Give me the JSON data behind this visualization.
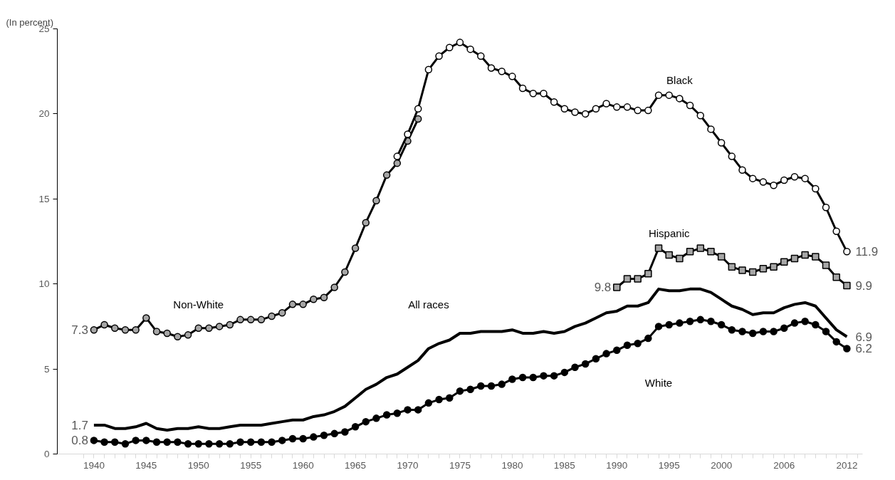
{
  "chart_data": {
    "type": "line",
    "ylabel": "(In percent)",
    "ylim": [
      0,
      25
    ],
    "yticks": [
      0,
      5,
      10,
      15,
      20,
      25
    ],
    "xlim": [
      1936.5,
      2013.5
    ],
    "xticks": [
      {
        "value": 1939,
        "label": null
      },
      1940,
      {
        "value": 1941,
        "label": null
      },
      {
        "value": 1942,
        "label": null
      },
      {
        "value": 1943,
        "label": null
      },
      {
        "value": 1944,
        "label": null
      },
      1945,
      {
        "value": 1946,
        "label": null
      },
      {
        "value": 1947,
        "label": null
      },
      {
        "value": 1948,
        "label": null
      },
      {
        "value": 1949,
        "label": null
      },
      1950,
      {
        "value": 1951,
        "label": null
      },
      {
        "value": 1952,
        "label": null
      },
      {
        "value": 1953,
        "label": null
      },
      {
        "value": 1954,
        "label": null
      },
      1955,
      {
        "value": 1956,
        "label": null
      },
      {
        "value": 1957,
        "label": null
      },
      {
        "value": 1958,
        "label": null
      },
      {
        "value": 1959,
        "label": null
      },
      1960,
      {
        "value": 1961,
        "label": null
      },
      {
        "value": 1962,
        "label": null
      },
      {
        "value": 1963,
        "label": null
      },
      {
        "value": 1964,
        "label": null
      },
      1965,
      {
        "value": 1966,
        "label": null
      },
      {
        "value": 1967,
        "label": null
      },
      {
        "value": 1968,
        "label": null
      },
      {
        "value": 1969,
        "label": null
      },
      1970,
      {
        "value": 1971,
        "label": null
      },
      {
        "value": 1972,
        "label": null
      },
      {
        "value": 1973,
        "label": null
      },
      {
        "value": 1974,
        "label": null
      },
      1975,
      {
        "value": 1976,
        "label": null
      },
      {
        "value": 1977,
        "label": null
      },
      {
        "value": 1978,
        "label": null
      },
      {
        "value": 1979,
        "label": null
      },
      1980,
      {
        "value": 1981,
        "label": null
      },
      {
        "value": 1982,
        "label": null
      },
      {
        "value": 1983,
        "label": null
      },
      {
        "value": 1984,
        "label": null
      },
      1985,
      {
        "value": 1986,
        "label": null
      },
      {
        "value": 1987,
        "label": null
      },
      {
        "value": 1988,
        "label": null
      },
      {
        "value": 1989,
        "label": null
      },
      1990,
      {
        "value": 1991,
        "label": null
      },
      {
        "value": 1992,
        "label": null
      },
      {
        "value": 1993,
        "label": null
      },
      {
        "value": 1994,
        "label": null
      },
      1995,
      {
        "value": 1996,
        "label": null
      },
      {
        "value": 1997,
        "label": null
      },
      {
        "value": 1998,
        "label": null
      },
      {
        "value": 1999,
        "label": null
      },
      2000,
      {
        "value": 2001,
        "label": null
      },
      {
        "value": 2002,
        "label": null
      },
      {
        "value": 2003,
        "label": null
      },
      {
        "value": 2004,
        "label": null
      },
      {
        "value": 2005,
        "label": null
      },
      2006,
      {
        "value": 2007,
        "label": null
      },
      {
        "value": 2008,
        "label": null
      },
      {
        "value": 2009,
        "label": null
      },
      {
        "value": 2010,
        "label": null
      },
      {
        "value": 2011,
        "label": null
      },
      2012,
      {
        "value": 2013,
        "label": null
      }
    ],
    "grid": false,
    "line_style": "solid",
    "series": [
      {
        "name": "Non-White",
        "color": "#a6a6a6",
        "marker": "circle",
        "x": [
          1940,
          1941,
          1942,
          1943,
          1944,
          1945,
          1946,
          1947,
          1948,
          1949,
          1950,
          1951,
          1952,
          1953,
          1954,
          1955,
          1956,
          1957,
          1958,
          1959,
          1960,
          1961,
          1962,
          1963,
          1964,
          1965,
          1966,
          1967,
          1968,
          1969,
          1970,
          1971
        ],
        "values": [
          7.3,
          7.6,
          7.4,
          7.3,
          7.3,
          8.0,
          7.2,
          7.1,
          6.9,
          7.0,
          7.4,
          7.4,
          7.5,
          7.6,
          7.9,
          7.9,
          7.9,
          8.1,
          8.3,
          8.8,
          8.8,
          9.1,
          9.2,
          9.8,
          10.7,
          12.1,
          13.6,
          14.9,
          16.4,
          17.1,
          18.4,
          19.7
        ],
        "value_labels": [
          "7.3",
          null,
          null,
          null,
          null,
          null,
          null,
          null,
          null,
          null,
          null,
          null,
          null,
          null,
          null,
          null,
          null,
          null,
          null,
          null,
          null,
          null,
          null,
          null,
          null,
          null,
          null,
          null,
          null,
          null,
          null,
          null
        ]
      },
      {
        "name": "Black",
        "color": "#ffffff",
        "marker": "circle",
        "x": [
          1969,
          1970,
          1971,
          1972,
          1973,
          1974,
          1975,
          1976,
          1977,
          1978,
          1979,
          1980,
          1981,
          1982,
          1983,
          1984,
          1985,
          1986,
          1987,
          1988,
          1989,
          1990,
          1991,
          1992,
          1993,
          1994,
          1995,
          1996,
          1997,
          1998,
          1999,
          2000,
          2001,
          2002,
          2003,
          2004,
          2005,
          2006,
          2007,
          2008,
          2009,
          2010,
          2011,
          2012
        ],
        "values": [
          17.5,
          18.8,
          20.3,
          22.6,
          23.4,
          23.9,
          24.2,
          23.8,
          23.4,
          22.7,
          22.5,
          22.2,
          21.5,
          21.2,
          21.2,
          20.7,
          20.3,
          20.1,
          20.0,
          20.3,
          20.6,
          20.4,
          20.4,
          20.2,
          20.2,
          21.1,
          21.1,
          20.9,
          20.5,
          19.9,
          19.1,
          18.3,
          17.5,
          16.7,
          16.2,
          16.0,
          15.8,
          16.1,
          16.3,
          16.2,
          15.6,
          14.5,
          13.1,
          11.9
        ],
        "value_labels": [
          null,
          null,
          null,
          null,
          null,
          null,
          null,
          null,
          null,
          null,
          null,
          null,
          null,
          null,
          null,
          null,
          null,
          null,
          null,
          null,
          null,
          null,
          null,
          null,
          null,
          null,
          null,
          null,
          null,
          null,
          null,
          null,
          null,
          null,
          null,
          null,
          null,
          null,
          null,
          null,
          null,
          null,
          null,
          "11.9"
        ]
      },
      {
        "name": "Hispanic",
        "color": "#a6a6a6",
        "marker": "square",
        "x": [
          1990,
          1991,
          1992,
          1993,
          1994,
          1995,
          1996,
          1997,
          1998,
          1999,
          2000,
          2001,
          2002,
          2003,
          2004,
          2005,
          2006,
          2007,
          2008,
          2009,
          2010,
          2011,
          2012
        ],
        "values": [
          9.8,
          10.3,
          10.3,
          10.6,
          12.1,
          11.7,
          11.5,
          11.9,
          12.1,
          11.9,
          11.6,
          11.0,
          10.8,
          10.7,
          10.9,
          11.0,
          11.3,
          11.5,
          11.7,
          11.6,
          11.1,
          10.4,
          9.9
        ],
        "value_labels": [
          "9.8",
          null,
          null,
          null,
          null,
          null,
          null,
          null,
          null,
          null,
          null,
          null,
          null,
          null,
          null,
          null,
          null,
          null,
          null,
          null,
          null,
          null,
          "9.9"
        ]
      },
      {
        "name": "All races",
        "color": "#000000",
        "marker": "none",
        "x": [
          1940,
          1941,
          1942,
          1943,
          1944,
          1945,
          1946,
          1947,
          1948,
          1949,
          1950,
          1951,
          1952,
          1953,
          1954,
          1955,
          1956,
          1957,
          1958,
          1959,
          1960,
          1961,
          1962,
          1963,
          1964,
          1965,
          1966,
          1967,
          1968,
          1969,
          1970,
          1971,
          1972,
          1973,
          1974,
          1975,
          1976,
          1977,
          1978,
          1979,
          1980,
          1981,
          1982,
          1983,
          1984,
          1985,
          1986,
          1987,
          1988,
          1989,
          1990,
          1991,
          1992,
          1993,
          1994,
          1995,
          1996,
          1997,
          1998,
          1999,
          2000,
          2001,
          2002,
          2003,
          2004,
          2005,
          2006,
          2007,
          2008,
          2009,
          2010,
          2011,
          2012
        ],
        "values": [
          1.7,
          1.7,
          1.5,
          1.5,
          1.6,
          1.8,
          1.5,
          1.4,
          1.5,
          1.5,
          1.6,
          1.5,
          1.5,
          1.6,
          1.7,
          1.7,
          1.7,
          1.8,
          1.9,
          2.0,
          2.0,
          2.2,
          2.3,
          2.5,
          2.8,
          3.3,
          3.8,
          4.1,
          4.5,
          4.7,
          5.1,
          5.5,
          6.2,
          6.5,
          6.7,
          7.1,
          7.1,
          7.2,
          7.2,
          7.2,
          7.3,
          7.1,
          7.1,
          7.2,
          7.1,
          7.2,
          7.5,
          7.7,
          8.0,
          8.3,
          8.4,
          8.7,
          8.7,
          8.9,
          9.7,
          9.6,
          9.6,
          9.7,
          9.7,
          9.5,
          9.1,
          8.7,
          8.5,
          8.2,
          8.3,
          8.3,
          8.6,
          8.8,
          8.9,
          8.7,
          8.0,
          7.3,
          6.9
        ],
        "value_labels": [
          "1.7",
          null,
          null,
          null,
          null,
          null,
          null,
          null,
          null,
          null,
          null,
          null,
          null,
          null,
          null,
          null,
          null,
          null,
          null,
          null,
          null,
          null,
          null,
          null,
          null,
          null,
          null,
          null,
          null,
          null,
          null,
          null,
          null,
          null,
          null,
          null,
          null,
          null,
          null,
          null,
          null,
          null,
          null,
          null,
          null,
          null,
          null,
          null,
          null,
          null,
          null,
          null,
          null,
          null,
          null,
          null,
          null,
          null,
          null,
          null,
          null,
          null,
          null,
          null,
          null,
          null,
          null,
          null,
          null,
          null,
          null,
          null,
          "6.9"
        ]
      },
      {
        "name": "White",
        "color": "#000000",
        "marker": "circle",
        "x": [
          1940,
          1941,
          1942,
          1943,
          1944,
          1945,
          1946,
          1947,
          1948,
          1949,
          1950,
          1951,
          1952,
          1953,
          1954,
          1955,
          1956,
          1957,
          1958,
          1959,
          1960,
          1961,
          1962,
          1963,
          1964,
          1965,
          1966,
          1967,
          1968,
          1969,
          1970,
          1971,
          1972,
          1973,
          1974,
          1975,
          1976,
          1977,
          1978,
          1979,
          1980,
          1981,
          1982,
          1983,
          1984,
          1985,
          1986,
          1987,
          1988,
          1989,
          1990,
          1991,
          1992,
          1993,
          1994,
          1995,
          1996,
          1997,
          1998,
          1999,
          2000,
          2001,
          2002,
          2003,
          2004,
          2005,
          2006,
          2007,
          2008,
          2009,
          2010,
          2011,
          2012
        ],
        "values": [
          0.8,
          0.7,
          0.7,
          0.6,
          0.8,
          0.8,
          0.7,
          0.7,
          0.7,
          0.6,
          0.6,
          0.6,
          0.6,
          0.6,
          0.7,
          0.7,
          0.7,
          0.7,
          0.8,
          0.9,
          0.9,
          1.0,
          1.1,
          1.2,
          1.3,
          1.6,
          1.9,
          2.1,
          2.3,
          2.4,
          2.6,
          2.6,
          3.0,
          3.2,
          3.3,
          3.7,
          3.8,
          4.0,
          4.0,
          4.1,
          4.4,
          4.5,
          4.5,
          4.6,
          4.6,
          4.8,
          5.1,
          5.3,
          5.6,
          5.9,
          6.1,
          6.4,
          6.5,
          6.8,
          7.5,
          7.6,
          7.7,
          7.8,
          7.9,
          7.8,
          7.6,
          7.3,
          7.2,
          7.1,
          7.2,
          7.2,
          7.4,
          7.7,
          7.8,
          7.6,
          7.2,
          6.6,
          6.2
        ],
        "value_labels": [
          "0.8",
          null,
          null,
          null,
          null,
          null,
          null,
          null,
          null,
          null,
          null,
          null,
          null,
          null,
          null,
          null,
          null,
          null,
          null,
          null,
          null,
          null,
          null,
          null,
          null,
          null,
          null,
          null,
          null,
          null,
          null,
          null,
          null,
          null,
          null,
          null,
          null,
          null,
          null,
          null,
          null,
          null,
          null,
          null,
          null,
          null,
          null,
          null,
          null,
          null,
          null,
          null,
          null,
          null,
          null,
          null,
          null,
          null,
          null,
          null,
          null,
          null,
          null,
          null,
          null,
          null,
          null,
          null,
          null,
          null,
          null,
          null,
          "6.2"
        ]
      }
    ]
  }
}
